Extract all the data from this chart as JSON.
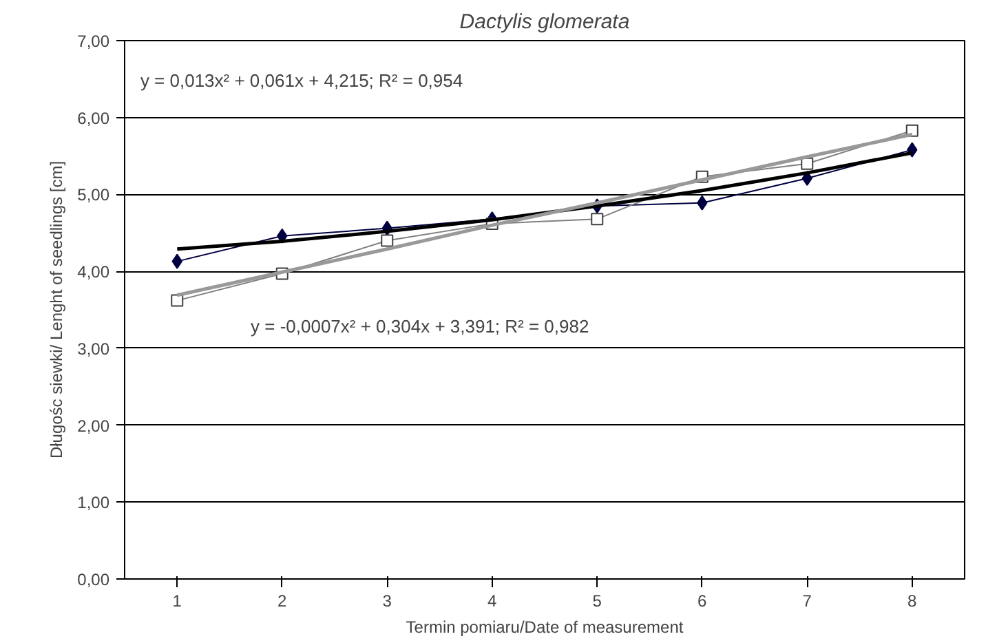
{
  "chart_data": {
    "type": "line",
    "title": "Dactylis glomerata",
    "xlabel": "Termin pomiaru/Date of measurement",
    "ylabel": "Długośc siewki/ Lenght of seedlings [cm]",
    "x": [
      1,
      2,
      3,
      4,
      5,
      6,
      7,
      8
    ],
    "series": [
      {
        "color": "#000040",
        "marker": "diamond",
        "values": [
          4.13,
          4.46,
          4.56,
          4.68,
          4.85,
          4.89,
          5.21,
          5.58
        ]
      },
      {
        "color": "#808080",
        "marker": "square",
        "values": [
          3.62,
          3.97,
          4.4,
          4.62,
          4.68,
          5.23,
          5.4,
          5.83
        ]
      },
      {
        "color": "#000000",
        "marker": "none",
        "values": [
          4.29,
          4.39,
          4.52,
          4.67,
          4.85,
          5.05,
          5.28,
          5.54
        ]
      },
      {
        "color": "#999999",
        "marker": "none",
        "values": [
          3.69,
          3.99,
          4.29,
          4.6,
          4.89,
          5.19,
          5.49,
          5.78
        ]
      }
    ],
    "xlim": [
      0.5,
      8.5
    ],
    "xticks": [
      1,
      2,
      3,
      4,
      5,
      6,
      7,
      8
    ],
    "ylim": [
      0,
      7
    ],
    "yticks": [
      {
        "value": 0,
        "label": "0,00"
      },
      {
        "value": 1,
        "label": "1,00"
      },
      {
        "value": 2,
        "label": "2,00"
      },
      {
        "value": 3,
        "label": "3,00"
      },
      {
        "value": 4,
        "label": "4,00"
      },
      {
        "value": 5,
        "label": "5,00"
      },
      {
        "value": 6,
        "label": "6,00"
      },
      {
        "value": 7,
        "label": "7,00"
      }
    ],
    "grid": "y",
    "annotations": [
      "y = 0,013x² + 0,061x + 4,215; R² = 0,954",
      "y = -0,0007x² + 0,304x + 3,391; R² = 0,982"
    ]
  }
}
